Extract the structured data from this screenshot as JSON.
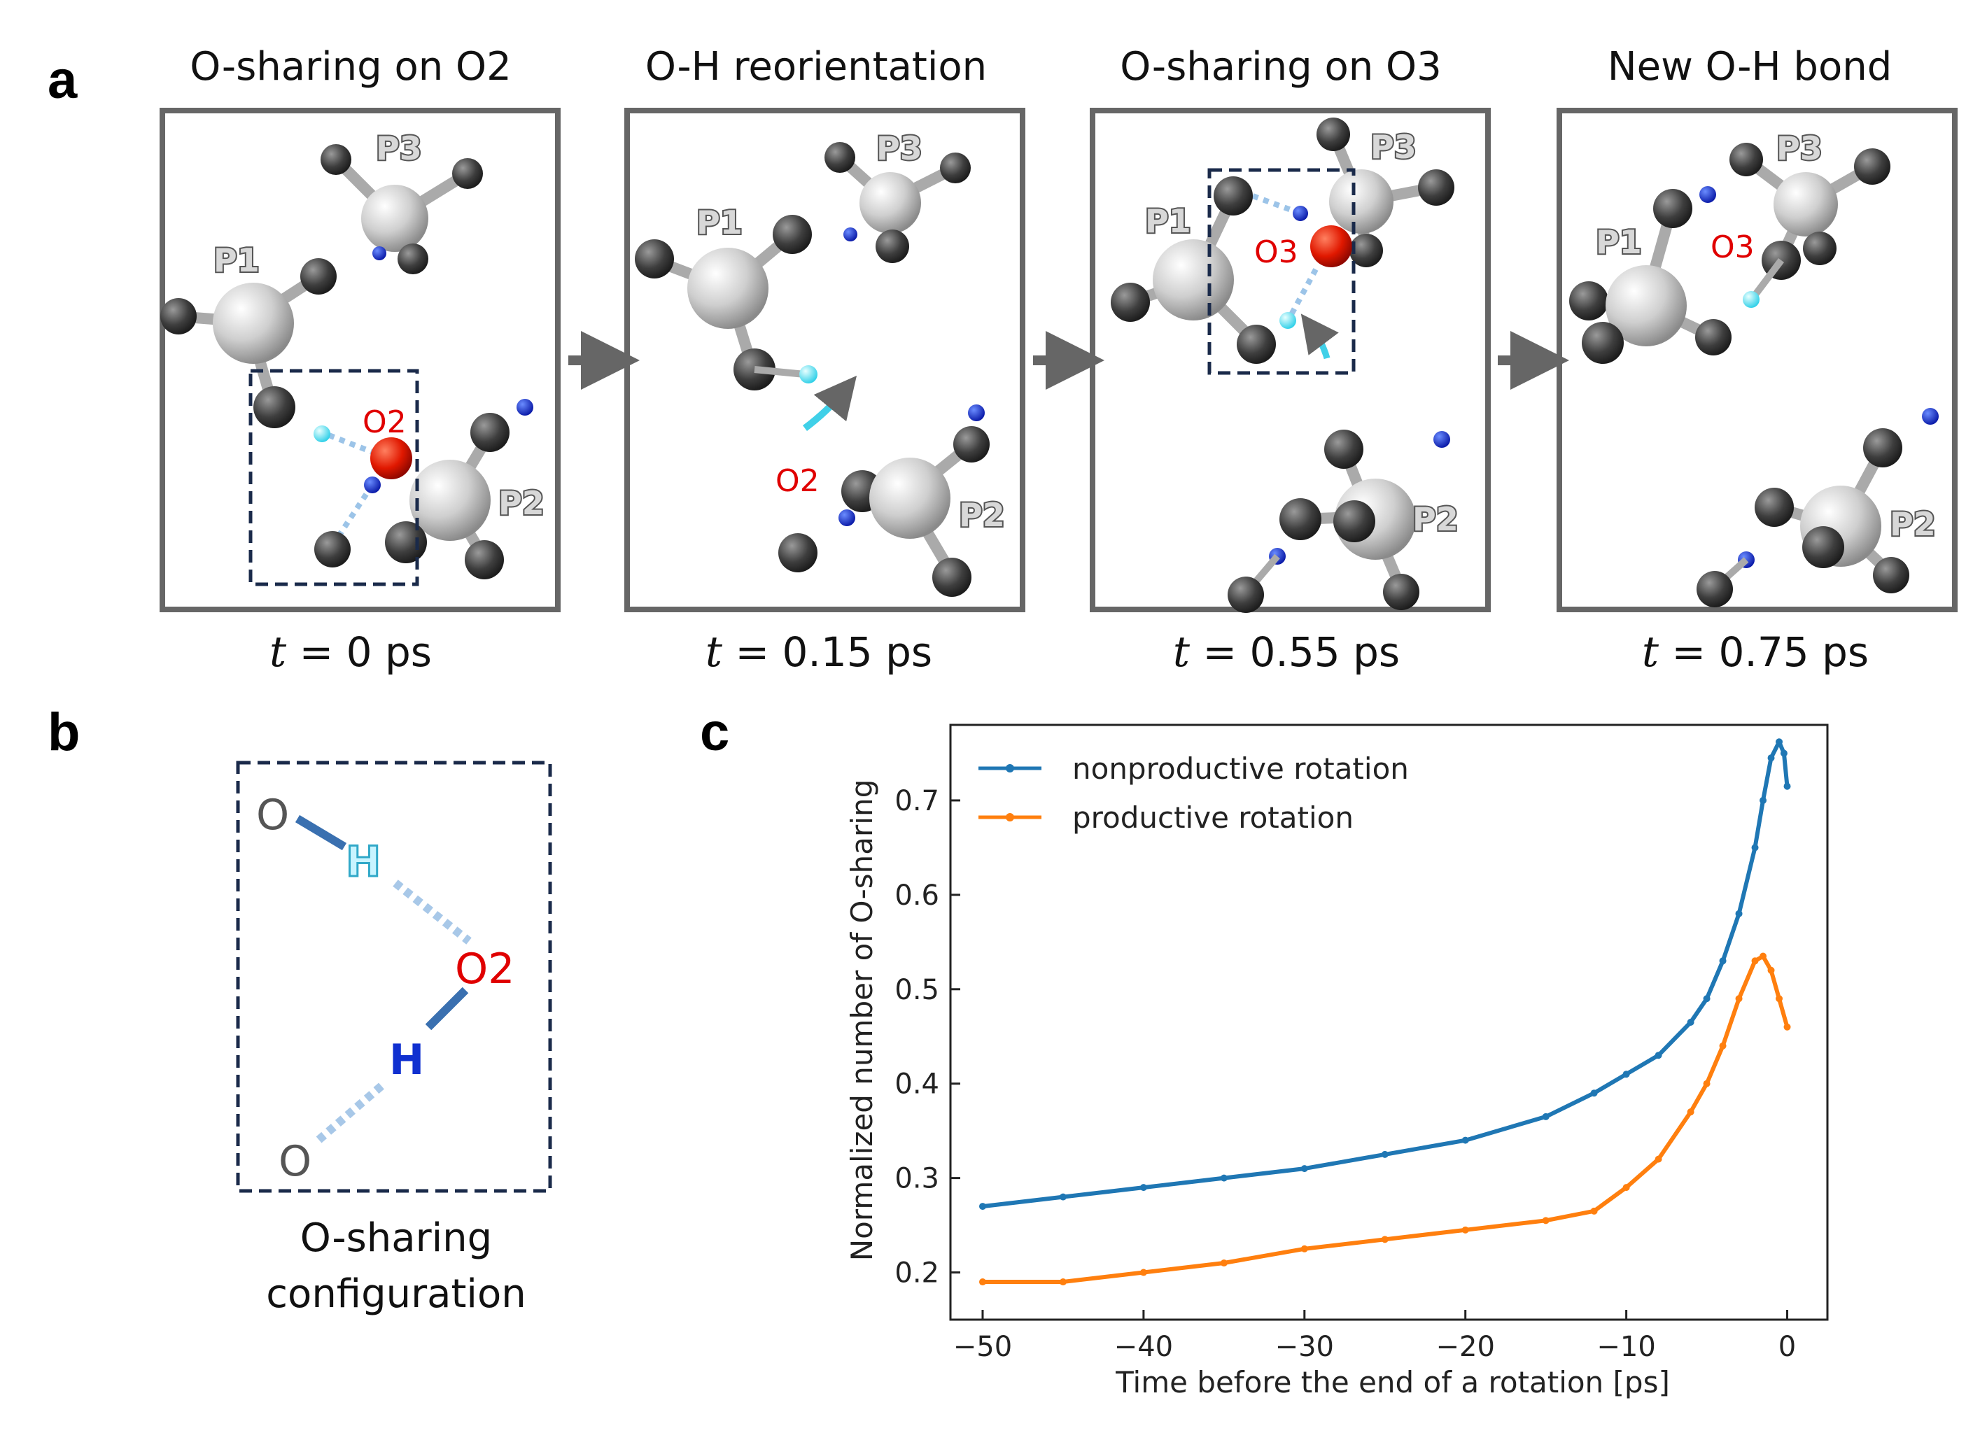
{
  "panel_a": {
    "label": "a",
    "frames": [
      {
        "title": "O-sharing on O2",
        "time_var": "t",
        "time_rest": " = 0 ps",
        "highlight": "O2"
      },
      {
        "title": "O-H reorientation",
        "time_var": "t",
        "time_rest": " = 0.15 ps",
        "highlight": "O2"
      },
      {
        "title": "O-sharing on O3",
        "time_var": "t",
        "time_rest": " = 0.55 ps",
        "highlight": "O3"
      },
      {
        "title": "New O-H bond",
        "time_var": "t",
        "time_rest": " = 0.75 ps",
        "highlight": "O3"
      }
    ],
    "atom_labels": {
      "p1": "P1",
      "p2": "P2",
      "p3": "P3"
    }
  },
  "panel_b": {
    "label": "b",
    "atoms": {
      "o_top": "O",
      "h_top": "H",
      "o2": "O2",
      "h_bottom": "H",
      "o_bottom": "O"
    },
    "caption_line1": "O-sharing",
    "caption_line2": "configuration"
  },
  "panel_c": {
    "label": "c"
  },
  "colors": {
    "nonproductive": "#1f77b4",
    "productive": "#ff7f0e",
    "oxygen_highlight": "#e00000",
    "carbon": "#4a4a4a",
    "phosphorus": "#cfcfcf",
    "h_blue": "#1030d0",
    "h_cyan": "#40e0f0",
    "frame_border": "#666666",
    "dashed_box": "#1a2a4a"
  },
  "chart_data": {
    "type": "line",
    "title": "",
    "xlabel": "Time before the end of a rotation [ps]",
    "ylabel": "Normalized number of O-sharing",
    "xlim": [
      -52,
      2.5
    ],
    "ylim": [
      0.15,
      0.78
    ],
    "xticks": [
      -50,
      -40,
      -30,
      -20,
      -10,
      0
    ],
    "xtick_labels": [
      "−50",
      "−40",
      "−30",
      "−20",
      "−10",
      "0"
    ],
    "yticks": [
      0.2,
      0.3,
      0.4,
      0.5,
      0.6,
      0.7
    ],
    "ytick_labels": [
      "0.2",
      "0.3",
      "0.4",
      "0.5",
      "0.6",
      "0.7"
    ],
    "legend_position": "upper-left",
    "grid": false,
    "series": [
      {
        "name": "nonproductive rotation",
        "x": [
          -50,
          -45,
          -40,
          -35,
          -30,
          -25,
          -20,
          -15,
          -12,
          -10,
          -8,
          -6,
          -5,
          -4,
          -3,
          -2,
          -1.5,
          -1,
          -0.5,
          -0.2,
          0
        ],
        "y": [
          0.27,
          0.28,
          0.29,
          0.3,
          0.31,
          0.325,
          0.34,
          0.365,
          0.39,
          0.41,
          0.43,
          0.465,
          0.49,
          0.53,
          0.58,
          0.65,
          0.7,
          0.745,
          0.762,
          0.75,
          0.715
        ]
      },
      {
        "name": "productive rotation",
        "x": [
          -50,
          -45,
          -40,
          -35,
          -30,
          -25,
          -20,
          -15,
          -12,
          -10,
          -8,
          -6,
          -5,
          -4,
          -3,
          -2,
          -1.5,
          -1,
          -0.5,
          0
        ],
        "y": [
          0.19,
          0.19,
          0.2,
          0.21,
          0.225,
          0.235,
          0.245,
          0.255,
          0.265,
          0.29,
          0.32,
          0.37,
          0.4,
          0.44,
          0.49,
          0.53,
          0.535,
          0.52,
          0.49,
          0.46
        ]
      }
    ]
  }
}
